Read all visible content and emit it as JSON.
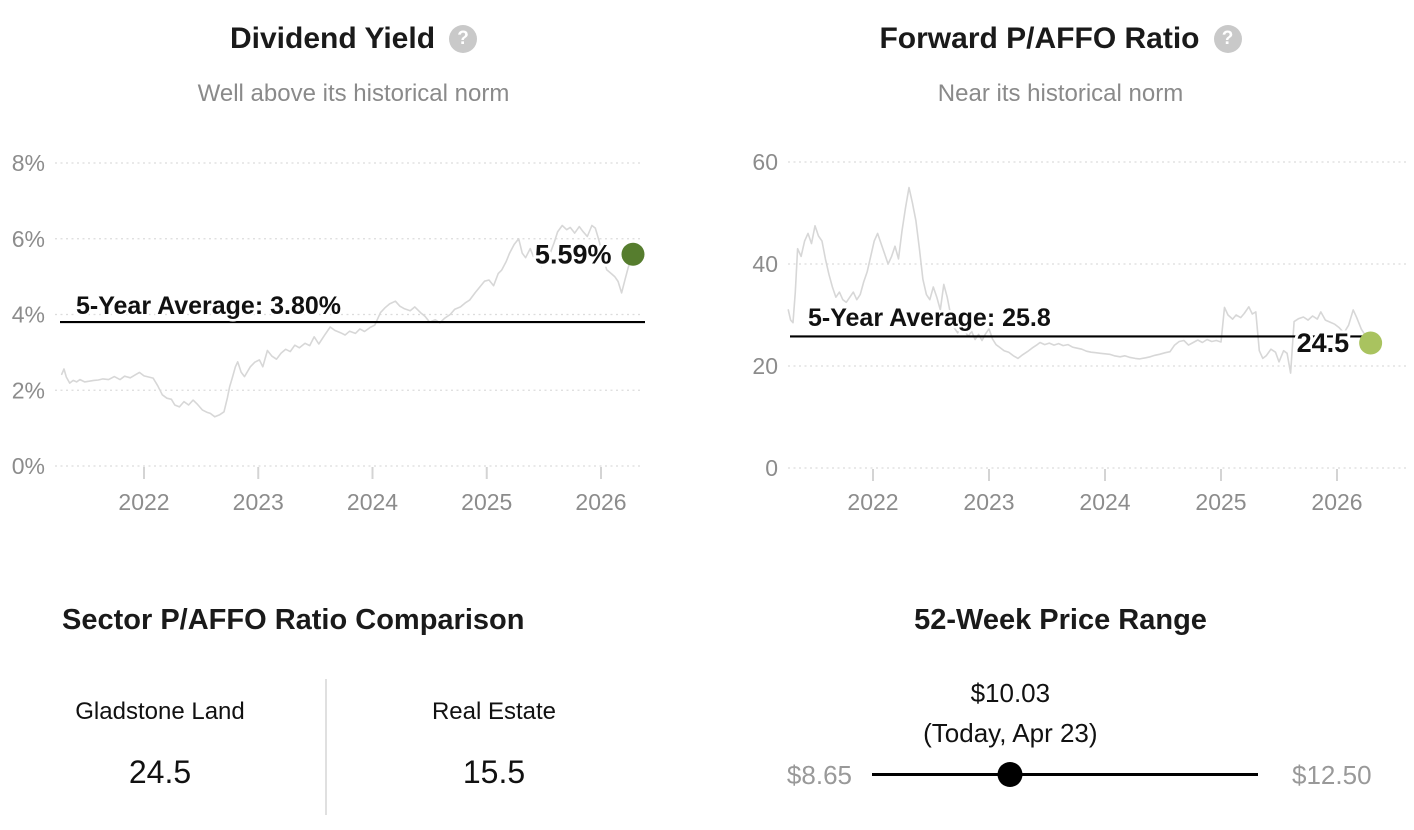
{
  "icons": {
    "help_glyph": "?"
  },
  "colors": {
    "series_line": "#d7d7d7",
    "grid_line": "#dcdcdc",
    "axis_text": "#8c8c8c",
    "average_line": "#000000",
    "dividend_dot": "#567d2e",
    "paffo_dot": "#a9c35f",
    "muted_text": "#8a8a8a",
    "range_endpoints": "#999999"
  },
  "chart_data": [
    {
      "type": "line",
      "title": "Dividend Yield",
      "subtitle": "Well above its historical norm",
      "xlim": [
        2021.22,
        2026.37
      ],
      "ylim": [
        0,
        8
      ],
      "grid": true,
      "legend": "none",
      "yticks": [
        {
          "v": 0,
          "label": "0%"
        },
        {
          "v": 2,
          "label": "2%"
        },
        {
          "v": 4,
          "label": "4%"
        },
        {
          "v": 6,
          "label": "6%"
        },
        {
          "v": 8,
          "label": "8%"
        }
      ],
      "xticks": [
        {
          "v": 2022,
          "label": "2022"
        },
        {
          "v": 2023,
          "label": "2023"
        },
        {
          "v": 2024,
          "label": "2024"
        },
        {
          "v": 2025,
          "label": "2025"
        },
        {
          "v": 2026,
          "label": "2026"
        }
      ],
      "average": {
        "value": 3.8,
        "label": "5-Year Average: 3.80%"
      },
      "current": {
        "value": 5.59,
        "label": "5.59%"
      },
      "points": [
        [
          2021.28,
          2.42
        ],
        [
          2021.3,
          2.56
        ],
        [
          2021.32,
          2.35
        ],
        [
          2021.35,
          2.19
        ],
        [
          2021.38,
          2.26
        ],
        [
          2021.41,
          2.22
        ],
        [
          2021.44,
          2.28
        ],
        [
          2021.48,
          2.22
        ],
        [
          2021.52,
          2.24
        ],
        [
          2021.56,
          2.26
        ],
        [
          2021.6,
          2.27
        ],
        [
          2021.64,
          2.3
        ],
        [
          2021.69,
          2.28
        ],
        [
          2021.74,
          2.36
        ],
        [
          2021.79,
          2.28
        ],
        [
          2021.83,
          2.37
        ],
        [
          2021.88,
          2.33
        ],
        [
          2021.92,
          2.4
        ],
        [
          2021.96,
          2.47
        ],
        [
          2022.0,
          2.38
        ],
        [
          2022.04,
          2.35
        ],
        [
          2022.08,
          2.32
        ],
        [
          2022.12,
          2.12
        ],
        [
          2022.16,
          1.88
        ],
        [
          2022.2,
          1.79
        ],
        [
          2022.24,
          1.76
        ],
        [
          2022.27,
          1.61
        ],
        [
          2022.31,
          1.56
        ],
        [
          2022.35,
          1.7
        ],
        [
          2022.39,
          1.61
        ],
        [
          2022.43,
          1.74
        ],
        [
          2022.47,
          1.62
        ],
        [
          2022.51,
          1.48
        ],
        [
          2022.55,
          1.42
        ],
        [
          2022.58,
          1.39
        ],
        [
          2022.62,
          1.3
        ],
        [
          2022.66,
          1.35
        ],
        [
          2022.7,
          1.43
        ],
        [
          2022.73,
          1.8
        ],
        [
          2022.75,
          2.1
        ],
        [
          2022.77,
          2.3
        ],
        [
          2022.8,
          2.62
        ],
        [
          2022.82,
          2.75
        ],
        [
          2022.85,
          2.48
        ],
        [
          2022.88,
          2.36
        ],
        [
          2022.93,
          2.62
        ],
        [
          2022.97,
          2.74
        ],
        [
          2023.01,
          2.8
        ],
        [
          2023.04,
          2.62
        ],
        [
          2023.08,
          3.05
        ],
        [
          2023.12,
          2.9
        ],
        [
          2023.16,
          2.82
        ],
        [
          2023.2,
          2.98
        ],
        [
          2023.24,
          3.08
        ],
        [
          2023.28,
          3.02
        ],
        [
          2023.32,
          3.19
        ],
        [
          2023.36,
          3.12
        ],
        [
          2023.41,
          3.24
        ],
        [
          2023.45,
          3.18
        ],
        [
          2023.49,
          3.41
        ],
        [
          2023.53,
          3.22
        ],
        [
          2023.58,
          3.45
        ],
        [
          2023.63,
          3.67
        ],
        [
          2023.67,
          3.58
        ],
        [
          2023.72,
          3.52
        ],
        [
          2023.76,
          3.46
        ],
        [
          2023.8,
          3.56
        ],
        [
          2023.85,
          3.5
        ],
        [
          2023.89,
          3.62
        ],
        [
          2023.93,
          3.55
        ],
        [
          2023.98,
          3.66
        ],
        [
          2024.02,
          3.72
        ],
        [
          2024.07,
          4.05
        ],
        [
          2024.11,
          4.18
        ],
        [
          2024.15,
          4.28
        ],
        [
          2024.2,
          4.35
        ],
        [
          2024.24,
          4.22
        ],
        [
          2024.28,
          4.15
        ],
        [
          2024.33,
          4.1
        ],
        [
          2024.37,
          4.2
        ],
        [
          2024.42,
          4.05
        ],
        [
          2024.46,
          3.95
        ],
        [
          2024.5,
          3.8
        ],
        [
          2024.55,
          3.86
        ],
        [
          2024.59,
          3.78
        ],
        [
          2024.63,
          3.9
        ],
        [
          2024.68,
          4.0
        ],
        [
          2024.72,
          4.14
        ],
        [
          2024.77,
          4.2
        ],
        [
          2024.81,
          4.3
        ],
        [
          2024.85,
          4.38
        ],
        [
          2024.9,
          4.58
        ],
        [
          2024.94,
          4.73
        ],
        [
          2024.98,
          4.88
        ],
        [
          2025.02,
          4.91
        ],
        [
          2025.06,
          4.76
        ],
        [
          2025.1,
          5.08
        ],
        [
          2025.13,
          5.17
        ],
        [
          2025.17,
          5.4
        ],
        [
          2025.2,
          5.62
        ],
        [
          2025.24,
          5.85
        ],
        [
          2025.28,
          6.0
        ],
        [
          2025.31,
          5.62
        ],
        [
          2025.34,
          5.5
        ],
        [
          2025.38,
          5.74
        ],
        [
          2025.41,
          5.52
        ],
        [
          2025.45,
          5.44
        ],
        [
          2025.48,
          5.27
        ],
        [
          2025.52,
          5.45
        ],
        [
          2025.55,
          5.58
        ],
        [
          2025.59,
          5.9
        ],
        [
          2025.62,
          6.18
        ],
        [
          2025.66,
          6.35
        ],
        [
          2025.7,
          6.24
        ],
        [
          2025.73,
          6.3
        ],
        [
          2025.77,
          6.15
        ],
        [
          2025.81,
          6.32
        ],
        [
          2025.84,
          6.2
        ],
        [
          2025.88,
          6.06
        ],
        [
          2025.92,
          6.35
        ],
        [
          2025.95,
          6.28
        ],
        [
          2025.98,
          5.98
        ],
        [
          2026.02,
          5.5
        ],
        [
          2026.05,
          5.18
        ],
        [
          2026.09,
          5.08
        ],
        [
          2026.12,
          5.0
        ],
        [
          2026.15,
          4.87
        ],
        [
          2026.18,
          4.57
        ],
        [
          2026.21,
          4.92
        ],
        [
          2026.24,
          5.26
        ],
        [
          2026.28,
          5.59
        ]
      ],
      "line_color": "#d7d7d7",
      "dot_color": "#567d2e"
    },
    {
      "type": "line",
      "title": "Forward P/AFFO Ratio",
      "subtitle": "Near its historical norm",
      "xlim": [
        2021.27,
        2026.61
      ],
      "ylim": [
        0,
        60
      ],
      "grid": true,
      "legend": "none",
      "yticks": [
        {
          "v": 0,
          "label": "0"
        },
        {
          "v": 20,
          "label": "20"
        },
        {
          "v": 40,
          "label": "40"
        },
        {
          "v": 60,
          "label": "60"
        }
      ],
      "xticks": [
        {
          "v": 2022,
          "label": "2022"
        },
        {
          "v": 2023,
          "label": "2023"
        },
        {
          "v": 2024,
          "label": "2024"
        },
        {
          "v": 2025,
          "label": "2025"
        },
        {
          "v": 2026,
          "label": "2026"
        }
      ],
      "average": {
        "value": 25.8,
        "label": "5-Year Average: 25.8"
      },
      "current": {
        "value": 24.5,
        "label": "24.5"
      },
      "points": [
        [
          2021.27,
          31.0
        ],
        [
          2021.29,
          29.0
        ],
        [
          2021.31,
          28.5
        ],
        [
          2021.33,
          34.5
        ],
        [
          2021.35,
          43.0
        ],
        [
          2021.38,
          41.5
        ],
        [
          2021.41,
          44.5
        ],
        [
          2021.44,
          46.0
        ],
        [
          2021.47,
          44.0
        ],
        [
          2021.5,
          47.5
        ],
        [
          2021.53,
          45.5
        ],
        [
          2021.56,
          44.5
        ],
        [
          2021.59,
          41.0
        ],
        [
          2021.62,
          38.0
        ],
        [
          2021.65,
          35.5
        ],
        [
          2021.68,
          33.5
        ],
        [
          2021.71,
          34.5
        ],
        [
          2021.74,
          33.0
        ],
        [
          2021.77,
          32.5
        ],
        [
          2021.8,
          33.5
        ],
        [
          2021.83,
          34.5
        ],
        [
          2021.86,
          33.0
        ],
        [
          2021.89,
          34.0
        ],
        [
          2021.92,
          36.5
        ],
        [
          2021.95,
          38.5
        ],
        [
          2021.98,
          41.5
        ],
        [
          2022.01,
          44.5
        ],
        [
          2022.04,
          46.0
        ],
        [
          2022.07,
          44.0
        ],
        [
          2022.1,
          42.0
        ],
        [
          2022.13,
          40.0
        ],
        [
          2022.16,
          41.5
        ],
        [
          2022.19,
          43.5
        ],
        [
          2022.22,
          41.0
        ],
        [
          2022.25,
          46.5
        ],
        [
          2022.28,
          51.0
        ],
        [
          2022.31,
          55.0
        ],
        [
          2022.34,
          52.0
        ],
        [
          2022.37,
          48.5
        ],
        [
          2022.4,
          43.0
        ],
        [
          2022.43,
          37.0
        ],
        [
          2022.46,
          34.0
        ],
        [
          2022.49,
          33.0
        ],
        [
          2022.52,
          35.5
        ],
        [
          2022.55,
          33.5
        ],
        [
          2022.58,
          31.0
        ],
        [
          2022.61,
          36.0
        ],
        [
          2022.64,
          33.5
        ],
        [
          2022.67,
          30.0
        ],
        [
          2022.7,
          27.5
        ],
        [
          2022.73,
          26.5
        ],
        [
          2022.76,
          28.0
        ],
        [
          2022.79,
          27.0
        ],
        [
          2022.82,
          25.8
        ],
        [
          2022.85,
          26.8
        ],
        [
          2022.88,
          25.2
        ],
        [
          2022.91,
          26.2
        ],
        [
          2022.94,
          25.0
        ],
        [
          2022.97,
          26.3
        ],
        [
          2023.0,
          27.3
        ],
        [
          2023.03,
          25.3
        ],
        [
          2023.06,
          24.2
        ],
        [
          2023.09,
          23.7
        ],
        [
          2023.13,
          23.0
        ],
        [
          2023.17,
          22.7
        ],
        [
          2023.21,
          22.0
        ],
        [
          2023.25,
          21.5
        ],
        [
          2023.29,
          22.2
        ],
        [
          2023.33,
          22.8
        ],
        [
          2023.37,
          23.5
        ],
        [
          2023.41,
          24.1
        ],
        [
          2023.44,
          24.6
        ],
        [
          2023.48,
          24.2
        ],
        [
          2023.52,
          24.5
        ],
        [
          2023.56,
          24.1
        ],
        [
          2023.6,
          24.4
        ],
        [
          2023.64,
          24.0
        ],
        [
          2023.68,
          24.2
        ],
        [
          2023.72,
          23.7
        ],
        [
          2023.76,
          23.5
        ],
        [
          2023.8,
          23.3
        ],
        [
          2023.84,
          22.9
        ],
        [
          2023.88,
          22.7
        ],
        [
          2023.92,
          22.6
        ],
        [
          2023.96,
          22.5
        ],
        [
          2024.0,
          22.4
        ],
        [
          2024.04,
          22.3
        ],
        [
          2024.08,
          22.0
        ],
        [
          2024.13,
          21.8
        ],
        [
          2024.17,
          22.0
        ],
        [
          2024.21,
          21.7
        ],
        [
          2024.26,
          21.5
        ],
        [
          2024.3,
          21.4
        ],
        [
          2024.35,
          21.6
        ],
        [
          2024.39,
          21.8
        ],
        [
          2024.43,
          22.1
        ],
        [
          2024.47,
          22.3
        ],
        [
          2024.52,
          22.6
        ],
        [
          2024.56,
          22.8
        ],
        [
          2024.6,
          24.1
        ],
        [
          2024.64,
          24.8
        ],
        [
          2024.68,
          25.0
        ],
        [
          2024.72,
          24.1
        ],
        [
          2024.76,
          24.6
        ],
        [
          2024.8,
          25.1
        ],
        [
          2024.84,
          24.6
        ],
        [
          2024.88,
          25.2
        ],
        [
          2024.92,
          24.8
        ],
        [
          2024.96,
          25.0
        ],
        [
          2025.0,
          24.7
        ],
        [
          2025.03,
          31.5
        ],
        [
          2025.06,
          30.0
        ],
        [
          2025.1,
          29.2
        ],
        [
          2025.13,
          30.0
        ],
        [
          2025.17,
          29.5
        ],
        [
          2025.2,
          30.3
        ],
        [
          2025.24,
          31.6
        ],
        [
          2025.27,
          30.2
        ],
        [
          2025.3,
          30.6
        ],
        [
          2025.33,
          23.0
        ],
        [
          2025.36,
          21.5
        ],
        [
          2025.39,
          22.0
        ],
        [
          2025.43,
          23.3
        ],
        [
          2025.47,
          22.7
        ],
        [
          2025.5,
          20.8
        ],
        [
          2025.54,
          23.0
        ],
        [
          2025.57,
          22.5
        ],
        [
          2025.6,
          18.6
        ],
        [
          2025.63,
          28.7
        ],
        [
          2025.67,
          29.3
        ],
        [
          2025.71,
          29.6
        ],
        [
          2025.75,
          29.0
        ],
        [
          2025.79,
          29.8
        ],
        [
          2025.83,
          29.2
        ],
        [
          2025.86,
          30.6
        ],
        [
          2025.9,
          29.0
        ],
        [
          2025.94,
          28.6
        ],
        [
          2025.98,
          28.2
        ],
        [
          2026.02,
          27.5
        ],
        [
          2026.06,
          26.5
        ],
        [
          2026.1,
          28.0
        ],
        [
          2026.14,
          31.0
        ],
        [
          2026.17,
          29.5
        ],
        [
          2026.21,
          27.2
        ],
        [
          2026.25,
          25.8
        ],
        [
          2026.29,
          24.5
        ]
      ],
      "line_color": "#d7d7d7",
      "dot_color": "#a9c35f"
    }
  ],
  "sector_comparison": {
    "title": "Sector P/AFFO Ratio Comparison",
    "columns": [
      {
        "label": "Gladstone Land",
        "value": "24.5"
      },
      {
        "label": "Real Estate",
        "value": "15.5"
      }
    ]
  },
  "price_range": {
    "title": "52-Week Price Range",
    "current_price": "$10.03",
    "current_label": "(Today, Apr 23)",
    "low": "$8.65",
    "high": "$12.50"
  }
}
